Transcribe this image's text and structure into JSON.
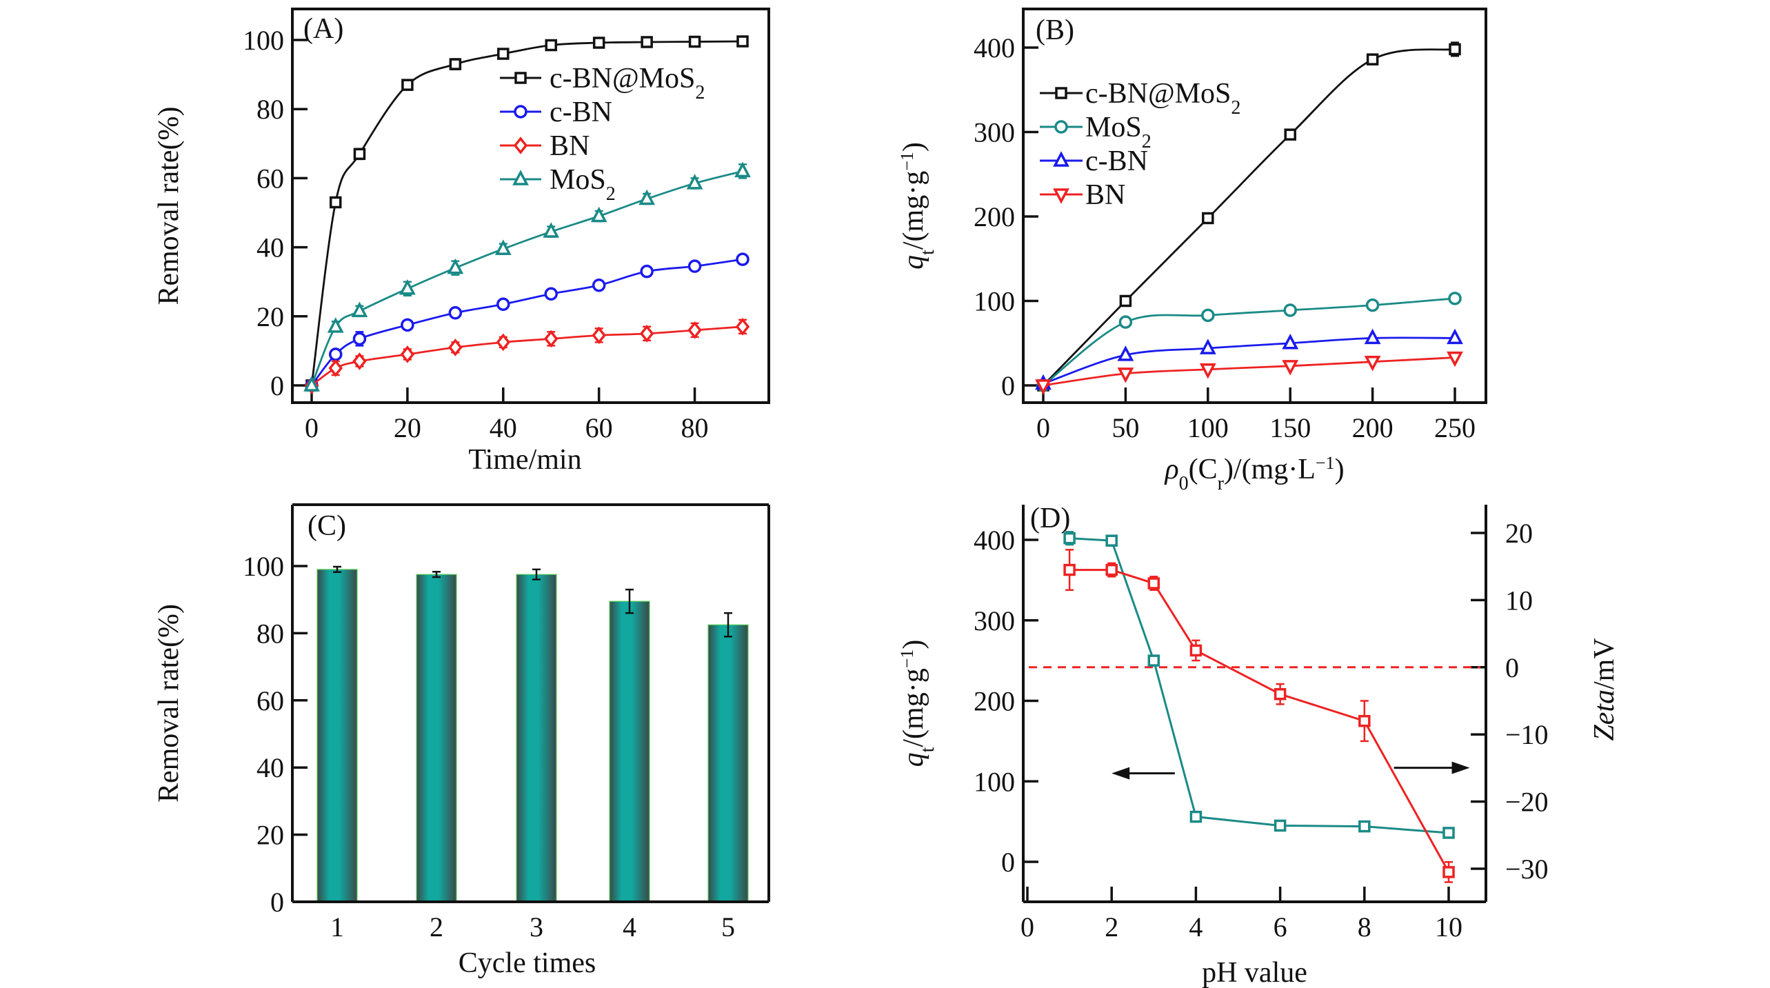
{
  "figure": {
    "panels": [
      "A",
      "B",
      "C",
      "D"
    ]
  },
  "chart_data": [
    {
      "id": "A",
      "type": "line",
      "panel_label": "(A)",
      "title": "",
      "xlabel": "Time/min",
      "ylabel": "Removal rate(%)",
      "xlim": [
        -2,
        97
      ],
      "ylim": [
        -5,
        108
      ],
      "xticks": [
        0,
        20,
        40,
        60,
        80
      ],
      "yticks": [
        0,
        20,
        40,
        60,
        80,
        100
      ],
      "grid": false,
      "legend_position": "top-right",
      "x": [
        0,
        5,
        10,
        20,
        30,
        40,
        50,
        60,
        70,
        80,
        90
      ],
      "series": [
        {
          "name": "c-BN@MoS",
          "name_sub": "2",
          "marker": "square",
          "color": "#111111",
          "values": [
            0,
            53,
            67,
            87,
            93,
            96,
            98.5,
            99.2,
            99.4,
            99.5,
            99.6
          ],
          "errors": [
            0,
            1,
            1.5,
            1,
            1.5,
            1,
            1,
            0.8,
            0.8,
            0.8,
            0.8
          ]
        },
        {
          "name": "c-BN",
          "name_sub": "",
          "marker": "circle",
          "color": "#1a1aee",
          "values": [
            0,
            9,
            13.5,
            17.5,
            21,
            23.5,
            26.5,
            29,
            33,
            34.5,
            36.5
          ],
          "errors": [
            0,
            0.8,
            2,
            1,
            1,
            1,
            1,
            1,
            1,
            1,
            1
          ]
        },
        {
          "name": "BN",
          "name_sub": "",
          "marker": "diamond",
          "color": "#ee2222",
          "values": [
            0,
            5,
            7,
            9,
            11,
            12.5,
            13.5,
            14.5,
            15,
            16,
            17
          ],
          "errors": [
            0,
            2,
            1.5,
            1.5,
            1.5,
            1.5,
            2,
            2,
            2,
            2,
            2
          ]
        },
        {
          "name": "MoS",
          "name_sub": "2",
          "marker": "triangle-up",
          "color": "#1a8a86",
          "values": [
            0,
            17,
            21.5,
            28,
            34,
            39.5,
            44.5,
            49,
            54,
            58.5,
            62
          ],
          "errors": [
            0,
            1.5,
            1.5,
            2,
            2,
            1.5,
            1.5,
            1.5,
            1.5,
            1.5,
            2
          ]
        }
      ]
    },
    {
      "id": "B",
      "type": "line",
      "panel_label": "(B)",
      "title": "",
      "xlabel_main": "ρ",
      "xlabel_sub": "0",
      "xlabel_rest": "(C",
      "xlabel_sub2": "r",
      "xlabel_end": ")/(mg·L",
      "xlabel_sup": "−1",
      "xlabel_close": ")",
      "ylabel_main": "q",
      "ylabel_sub": "t",
      "ylabel_rest": "/(mg·g",
      "ylabel_sup": "−1",
      "ylabel_close": ")",
      "xlim": [
        -10,
        262
      ],
      "ylim": [
        -20,
        450
      ],
      "xticks": [
        0,
        50,
        100,
        150,
        200,
        250
      ],
      "yticks": [
        0,
        100,
        200,
        300,
        400
      ],
      "grid": false,
      "legend_position": "top-left",
      "x": [
        0,
        50,
        100,
        150,
        200,
        250
      ],
      "series": [
        {
          "name": "c-BN@MoS",
          "name_sub": "2",
          "marker": "square",
          "color": "#111111",
          "values": [
            0,
            100,
            198,
            297,
            386,
            398
          ],
          "errors": [
            0,
            2,
            2,
            2,
            3,
            8
          ]
        },
        {
          "name": "MoS",
          "name_sub": "2",
          "marker": "circle",
          "color": "#1a8a86",
          "values": [
            0,
            75,
            83,
            89,
            95,
            103
          ],
          "errors": [
            0,
            2,
            2,
            2,
            2,
            2
          ]
        },
        {
          "name": "c-BN",
          "name_sub": "",
          "marker": "triangle-up",
          "color": "#1a1aee",
          "values": [
            2,
            36,
            44,
            50,
            56,
            56
          ],
          "errors": [
            0,
            2,
            2,
            2,
            2,
            2
          ]
        },
        {
          "name": "BN",
          "name_sub": "",
          "marker": "triangle-down",
          "color": "#ee2222",
          "values": [
            0,
            14,
            19,
            23,
            28,
            33
          ],
          "errors": [
            0,
            2,
            2,
            2,
            2,
            2
          ]
        }
      ]
    },
    {
      "id": "C",
      "type": "bar",
      "panel_label": "(C)",
      "title": "",
      "xlabel": "Cycle times",
      "ylabel": "Removal rate(%)",
      "ylim": [
        0,
        118
      ],
      "yticks": [
        0,
        20,
        40,
        60,
        80,
        100
      ],
      "grid": false,
      "categories": [
        "1",
        "2",
        "3",
        "4",
        "5"
      ],
      "values": [
        99,
        97.5,
        97.5,
        89.5,
        82.5
      ],
      "errors": [
        0.8,
        0.8,
        1.5,
        3.5,
        3.5
      ],
      "color": "#12a8a0"
    },
    {
      "id": "D",
      "type": "line",
      "panel_label": "(D)",
      "title": "",
      "xlabel": "pH value",
      "ylabel_left_main": "q",
      "ylabel_left_sub": "t",
      "ylabel_left_rest": "/(mg·g",
      "ylabel_left_sup": "−1",
      "ylabel_left_close": ")",
      "ylabel_right_italic": "Zeta",
      "ylabel_right_rest": "/mV",
      "xlim": [
        0,
        11
      ],
      "ylim_left": [
        -50,
        450
      ],
      "ylim_right": [
        -35,
        25
      ],
      "xticks": [
        0,
        2,
        4,
        6,
        8,
        10
      ],
      "yticks_left": [
        0,
        100,
        200,
        300,
        400
      ],
      "yticks_right": [
        -30,
        -20,
        -10,
        0,
        10,
        20
      ],
      "yticks_right_labels": [
        "−30",
        "−20",
        "−10",
        "0",
        "10",
        "20"
      ],
      "grid": false,
      "reference_line": {
        "axis": "right",
        "value": 0,
        "style": "dashed",
        "color": "#ee2222"
      },
      "arrows": [
        {
          "direction": "left",
          "meaning": "left axis (q_t)",
          "x_from": 3.5,
          "x_to": 2.0,
          "y_left": 110
        },
        {
          "direction": "right",
          "meaning": "right axis (Zeta)",
          "x_from": 8.7,
          "x_to": 10.5,
          "y_left": 110
        }
      ],
      "series": [
        {
          "name": "q_t",
          "axis": "left",
          "marker": "square",
          "color": "#1a8a86",
          "x": [
            1,
            2,
            3,
            4,
            6,
            8,
            10
          ],
          "values": [
            402,
            399,
            250,
            56,
            45,
            44,
            36
          ],
          "errors": [
            8,
            6,
            4,
            4,
            4,
            5,
            4
          ]
        },
        {
          "name": "Zeta",
          "axis": "right",
          "marker": "square",
          "color": "#ee2222",
          "x": [
            1,
            2,
            3,
            4,
            6,
            8,
            10
          ],
          "values": [
            14.5,
            14.5,
            12.5,
            2.5,
            -4,
            -8,
            -30.5
          ],
          "errors": [
            3,
            1,
            1,
            1.5,
            1.5,
            3,
            1.5
          ]
        }
      ]
    }
  ]
}
